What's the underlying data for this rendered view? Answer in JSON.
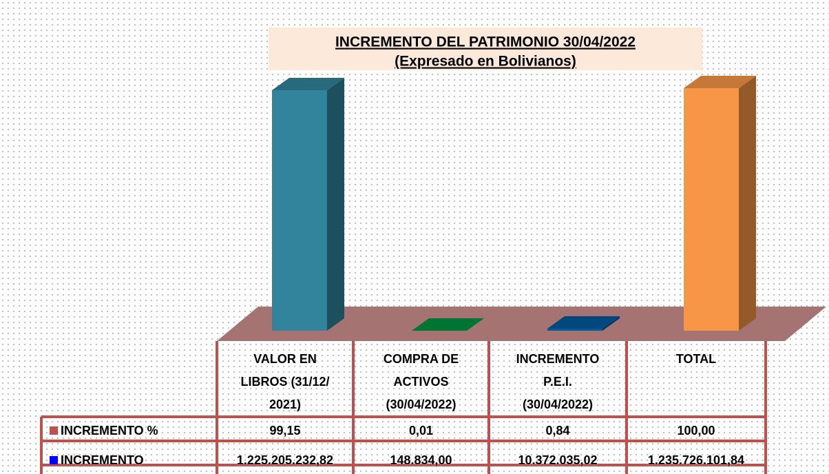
{
  "chart_data": {
    "type": "bar3d",
    "title": "INCREMENTO DEL PATRIMONIO 30/04/2022",
    "subtitle": "(Expresado en Bolivianos)",
    "categories": [
      "VALOR EN LIBROS (31/12/ 2021)",
      "COMPRA DE ACTIVOS (30/04/2022)",
      "INCREMENTO P.E.I. (30/04/2022)",
      "TOTAL"
    ],
    "bar_colors": [
      "#31849b",
      "#00923f",
      "#005a9c",
      "#f79646"
    ],
    "ylim": [
      0,
      100
    ],
    "series": [
      {
        "name": "INCREMENTO %",
        "color": "#c0504d",
        "values": [
          99.15,
          0.01,
          0.84,
          100
        ],
        "value_labels": [
          "99,15",
          "0,01",
          "0,84",
          "100,00"
        ]
      },
      {
        "name": "INCREMENTO",
        "color": "#0000ff",
        "values": [
          1225205232.82,
          148834,
          10372035.02,
          1235726101.84
        ],
        "value_labels": [
          "1.225.205.232,82",
          "148.834,00",
          "10.372.035,02",
          "1.235.726.101,84"
        ]
      }
    ]
  }
}
